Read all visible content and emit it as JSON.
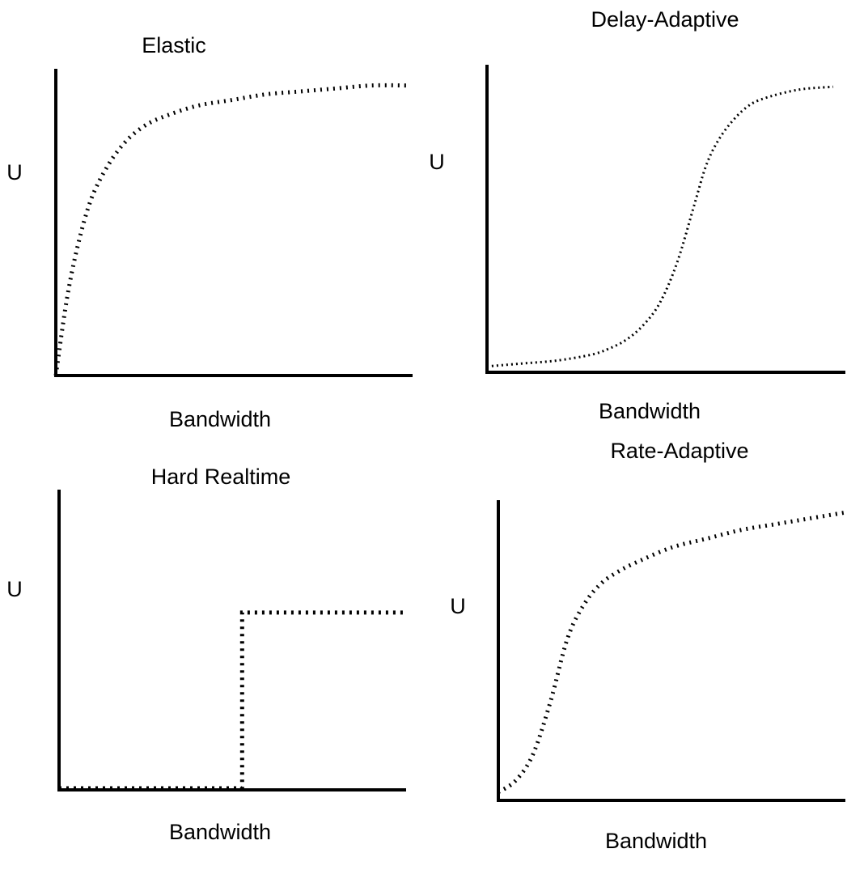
{
  "colors": {
    "ink": "#000000",
    "background": "#ffffff"
  },
  "chart_data": [
    {
      "type": "line",
      "title": "Elastic",
      "xlabel": "Bandwidth",
      "ylabel": "U",
      "xlim": [
        0,
        1
      ],
      "ylim": [
        0,
        1
      ],
      "grid": false,
      "line_style": "dotted",
      "series": [
        {
          "x": [
            0.0,
            0.03,
            0.06,
            0.1,
            0.15,
            0.2,
            0.25,
            0.3,
            0.4,
            0.5,
            0.6,
            0.7,
            0.8,
            0.9,
            1.0
          ],
          "values": [
            0.0,
            0.25,
            0.43,
            0.6,
            0.72,
            0.8,
            0.85,
            0.88,
            0.92,
            0.94,
            0.96,
            0.97,
            0.98,
            0.99,
            0.99
          ]
        }
      ]
    },
    {
      "type": "line",
      "title": "Delay-Adaptive",
      "xlabel": "Bandwidth",
      "ylabel": "U",
      "xlim": [
        0,
        1
      ],
      "ylim": [
        0,
        1
      ],
      "grid": false,
      "line_style": "dotted",
      "series": [
        {
          "x": [
            0.0,
            0.1,
            0.2,
            0.3,
            0.35,
            0.4,
            0.45,
            0.5,
            0.55,
            0.6,
            0.63,
            0.66,
            0.7,
            0.75,
            0.8,
            0.9,
            1.0
          ],
          "values": [
            0.02,
            0.03,
            0.04,
            0.06,
            0.08,
            0.11,
            0.16,
            0.24,
            0.38,
            0.58,
            0.7,
            0.78,
            0.85,
            0.91,
            0.94,
            0.97,
            0.98
          ]
        }
      ]
    },
    {
      "type": "line",
      "title": "Hard Realtime",
      "xlabel": "Bandwidth",
      "ylabel": "U",
      "xlim": [
        0,
        1
      ],
      "ylim": [
        0,
        1
      ],
      "grid": false,
      "line_style": "dotted",
      "series": [
        {
          "x": [
            0.0,
            0.53,
            0.53,
            1.0
          ],
          "values": [
            0.0,
            0.0,
            0.77,
            0.77
          ]
        }
      ]
    },
    {
      "type": "line",
      "title": "Rate-Adaptive",
      "xlabel": "Bandwidth",
      "ylabel": "U",
      "xlim": [
        0,
        1
      ],
      "ylim": [
        0,
        1
      ],
      "grid": false,
      "line_style": "dotted",
      "series": [
        {
          "x": [
            0.0,
            0.05,
            0.1,
            0.15,
            0.2,
            0.25,
            0.3,
            0.35,
            0.4,
            0.5,
            0.6,
            0.7,
            0.8,
            0.9,
            1.0
          ],
          "values": [
            0.02,
            0.06,
            0.15,
            0.33,
            0.55,
            0.67,
            0.74,
            0.78,
            0.81,
            0.86,
            0.89,
            0.92,
            0.94,
            0.96,
            0.98
          ]
        }
      ]
    }
  ]
}
